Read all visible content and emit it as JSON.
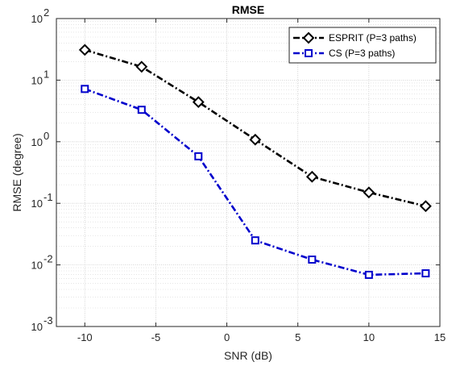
{
  "chart_data": {
    "type": "line",
    "title": "RMSE",
    "xlabel": "SNR (dB)",
    "ylabel": "RMSE (degree)",
    "xlim": [
      -12,
      15
    ],
    "ylim": [
      0.001,
      100
    ],
    "yscale": "log",
    "grid": true,
    "minor_grid": true,
    "legend_position": "top-right",
    "x_ticks": [
      -10,
      -5,
      0,
      5,
      10,
      15
    ],
    "x_tick_labels": [
      "-10",
      "-5",
      "0",
      "5",
      "10",
      "15"
    ],
    "y_ticks": [
      0.001,
      0.01,
      0.1,
      1,
      10,
      100
    ],
    "y_tick_base": [
      "10",
      "10",
      "10",
      "10",
      "10",
      "10"
    ],
    "y_tick_exp": [
      "-3",
      "-2",
      "-1",
      "0",
      "1",
      "2"
    ],
    "x": [
      -10,
      -6,
      -2,
      2,
      6,
      10,
      14
    ],
    "series": [
      {
        "name": "ESPRIT (P=3 paths)",
        "values": [
          31,
          16.5,
          4.4,
          1.08,
          0.27,
          0.15,
          0.09
        ],
        "color": "#000000",
        "marker": "diamond",
        "linestyle": "dash-dot"
      },
      {
        "name": "CS (P=3 paths)",
        "values": [
          7.2,
          3.3,
          0.58,
          0.025,
          0.0122,
          0.0069,
          0.0073
        ],
        "color": "#0000cc",
        "marker": "square",
        "linestyle": "dash-dot"
      }
    ]
  }
}
